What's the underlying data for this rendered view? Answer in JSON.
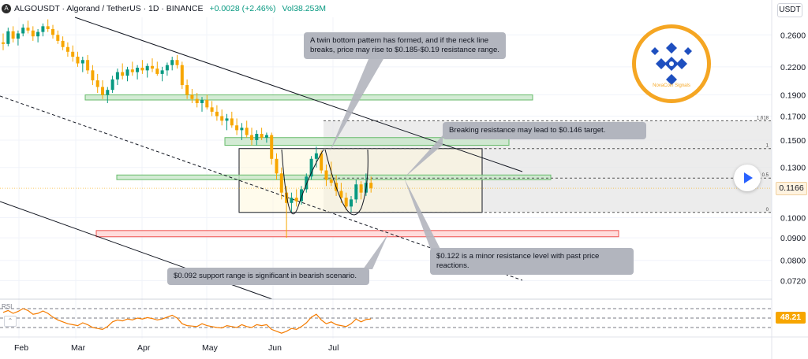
{
  "header": {
    "symbol_icon": "algorand-icon",
    "title": "ALGOUSDT · Algorand / TetherUS · 1D · BINANCE",
    "change": "+0.0028 (+2.46%)",
    "volume": "Vol38.253M"
  },
  "currency": "USDT",
  "current_price": "0.1166",
  "rsi_value": "48.21",
  "colors": {
    "up_candle": "#089981",
    "down_candle": "#f7a600",
    "green_zone_fill": "#c8e6c9",
    "green_zone_border": "#66bb6a",
    "red_zone_fill": "#ffd6d6",
    "red_zone_border": "#ef5350",
    "callout_bg": "#b2b5be",
    "rsi_line": "#f57c00",
    "brand_orange": "#f5a623",
    "brand_blue": "#1e4fbf"
  },
  "logo": {
    "icon": "brand-diamond-logo-icon",
    "caption": "NovaCoin Signals"
  },
  "annotations": [
    {
      "id": "twin-bottom",
      "text": "A twin bottom pattern has formed, and if the neck line breaks, price may rise to $0.185-$0.19 resistance range."
    },
    {
      "id": "breaking-resistance",
      "text": "Breaking resistance may lead to $0.146 target."
    },
    {
      "id": "minor-resistance",
      "text": "$0.122 is a minor resistance level with past price reactions."
    },
    {
      "id": "support",
      "text": "$0.092 support range is significant in bearish scenario."
    }
  ],
  "chart_data": {
    "type": "candlestick",
    "x_axis": {
      "labels": [
        "Feb",
        "Mar",
        "Apr",
        "May",
        "Jun",
        "Jul"
      ]
    },
    "y_axis": {
      "scale": "log",
      "ticks": [
        "0.2600",
        "0.2200",
        "0.1900",
        "0.1700",
        "0.1500",
        "0.1300",
        "0.1000",
        "0.0900",
        "0.0800",
        "0.0720"
      ],
      "range": [
        0.0675,
        0.285
      ]
    },
    "green_zones": [
      {
        "low": 0.185,
        "high": 0.19
      },
      {
        "low": 0.146,
        "high": 0.152
      },
      {
        "low": 0.122,
        "high": 0.125
      }
    ],
    "red_zone": {
      "low": 0.0905,
      "high": 0.0935
    },
    "fibonacci": {
      "levels": [
        {
          "label": "1.618",
          "price": 0.166
        },
        {
          "label": "1",
          "price": 0.1435
        },
        {
          "label": "0.5",
          "price": 0.123
        },
        {
          "label": "0",
          "price": 0.1028
        }
      ]
    },
    "candles": [
      [
        0.25,
        0.262,
        0.24,
        0.248
      ],
      [
        0.248,
        0.27,
        0.245,
        0.265
      ],
      [
        0.265,
        0.272,
        0.25,
        0.255
      ],
      [
        0.255,
        0.266,
        0.246,
        0.262
      ],
      [
        0.262,
        0.275,
        0.258,
        0.27
      ],
      [
        0.27,
        0.28,
        0.262,
        0.266
      ],
      [
        0.266,
        0.272,
        0.252,
        0.258
      ],
      [
        0.258,
        0.268,
        0.25,
        0.264
      ],
      [
        0.264,
        0.276,
        0.258,
        0.272
      ],
      [
        0.272,
        0.282,
        0.264,
        0.268
      ],
      [
        0.268,
        0.274,
        0.255,
        0.26
      ],
      [
        0.26,
        0.266,
        0.248,
        0.252
      ],
      [
        0.252,
        0.258,
        0.24,
        0.244
      ],
      [
        0.244,
        0.25,
        0.232,
        0.238
      ],
      [
        0.238,
        0.246,
        0.226,
        0.232
      ],
      [
        0.232,
        0.238,
        0.22,
        0.224
      ],
      [
        0.224,
        0.232,
        0.214,
        0.228
      ],
      [
        0.228,
        0.234,
        0.212,
        0.216
      ],
      [
        0.216,
        0.222,
        0.2,
        0.205
      ],
      [
        0.205,
        0.212,
        0.192,
        0.198
      ],
      [
        0.198,
        0.205,
        0.186,
        0.19
      ],
      [
        0.19,
        0.198,
        0.182,
        0.195
      ],
      [
        0.195,
        0.21,
        0.192,
        0.206
      ],
      [
        0.206,
        0.218,
        0.2,
        0.214
      ],
      [
        0.214,
        0.224,
        0.206,
        0.21
      ],
      [
        0.21,
        0.22,
        0.204,
        0.217
      ],
      [
        0.217,
        0.226,
        0.21,
        0.214
      ],
      [
        0.214,
        0.222,
        0.206,
        0.219
      ],
      [
        0.219,
        0.228,
        0.212,
        0.216
      ],
      [
        0.216,
        0.224,
        0.208,
        0.221
      ],
      [
        0.221,
        0.23,
        0.214,
        0.218
      ],
      [
        0.218,
        0.226,
        0.21,
        0.212
      ],
      [
        0.212,
        0.22,
        0.204,
        0.216
      ],
      [
        0.216,
        0.225,
        0.21,
        0.222
      ],
      [
        0.222,
        0.232,
        0.216,
        0.228
      ],
      [
        0.228,
        0.234,
        0.218,
        0.222
      ],
      [
        0.222,
        0.226,
        0.196,
        0.2
      ],
      [
        0.2,
        0.206,
        0.186,
        0.19
      ],
      [
        0.19,
        0.196,
        0.182,
        0.186
      ],
      [
        0.186,
        0.192,
        0.178,
        0.182
      ],
      [
        0.182,
        0.188,
        0.174,
        0.185
      ],
      [
        0.185,
        0.19,
        0.176,
        0.178
      ],
      [
        0.178,
        0.184,
        0.17,
        0.174
      ],
      [
        0.174,
        0.18,
        0.166,
        0.17
      ],
      [
        0.17,
        0.176,
        0.162,
        0.166
      ],
      [
        0.166,
        0.172,
        0.158,
        0.168
      ],
      [
        0.168,
        0.174,
        0.16,
        0.162
      ],
      [
        0.162,
        0.168,
        0.154,
        0.158
      ],
      [
        0.158,
        0.164,
        0.15,
        0.16
      ],
      [
        0.16,
        0.166,
        0.152,
        0.154
      ],
      [
        0.154,
        0.16,
        0.146,
        0.15
      ],
      [
        0.15,
        0.158,
        0.146,
        0.155
      ],
      [
        0.155,
        0.16,
        0.15,
        0.152
      ],
      [
        0.152,
        0.156,
        0.148,
        0.154
      ],
      [
        0.154,
        0.156,
        0.132,
        0.136
      ],
      [
        0.136,
        0.14,
        0.122,
        0.126
      ],
      [
        0.126,
        0.13,
        0.11,
        0.114
      ],
      [
        0.114,
        0.118,
        0.09,
        0.108
      ],
      [
        0.108,
        0.114,
        0.103,
        0.111
      ],
      [
        0.111,
        0.116,
        0.106,
        0.109
      ],
      [
        0.109,
        0.118,
        0.107,
        0.116
      ],
      [
        0.116,
        0.126,
        0.114,
        0.124
      ],
      [
        0.124,
        0.138,
        0.122,
        0.136
      ],
      [
        0.136,
        0.145,
        0.13,
        0.14
      ],
      [
        0.14,
        0.142,
        0.126,
        0.128
      ],
      [
        0.128,
        0.132,
        0.118,
        0.122
      ],
      [
        0.122,
        0.134,
        0.118,
        0.12
      ],
      [
        0.12,
        0.125,
        0.112,
        0.115
      ],
      [
        0.115,
        0.12,
        0.108,
        0.111
      ],
      [
        0.111,
        0.114,
        0.104,
        0.106
      ],
      [
        0.106,
        0.112,
        0.103,
        0.11
      ],
      [
        0.11,
        0.122,
        0.108,
        0.119
      ],
      [
        0.119,
        0.121,
        0.11,
        0.114
      ],
      [
        0.114,
        0.126,
        0.112,
        0.12
      ],
      [
        0.12,
        0.124,
        0.114,
        0.1166
      ]
    ],
    "rsi": {
      "value": 48.21,
      "levels": [
        70,
        50,
        30
      ],
      "range": [
        15,
        85
      ],
      "values": [
        62,
        66,
        60,
        64,
        70,
        66,
        58,
        60,
        65,
        60,
        52,
        46,
        42,
        38,
        36,
        34,
        40,
        36,
        30,
        28,
        26,
        32,
        42,
        46,
        44,
        48,
        46,
        50,
        48,
        51,
        49,
        46,
        48,
        52,
        56,
        50,
        38,
        34,
        33,
        32,
        38,
        34,
        32,
        30,
        29,
        34,
        32,
        30,
        36,
        32,
        30,
        36,
        34,
        36,
        26,
        22,
        18,
        22,
        28,
        26,
        32,
        40,
        52,
        58,
        46,
        38,
        42,
        36,
        34,
        32,
        38,
        48,
        42,
        47,
        48.21
      ]
    }
  }
}
